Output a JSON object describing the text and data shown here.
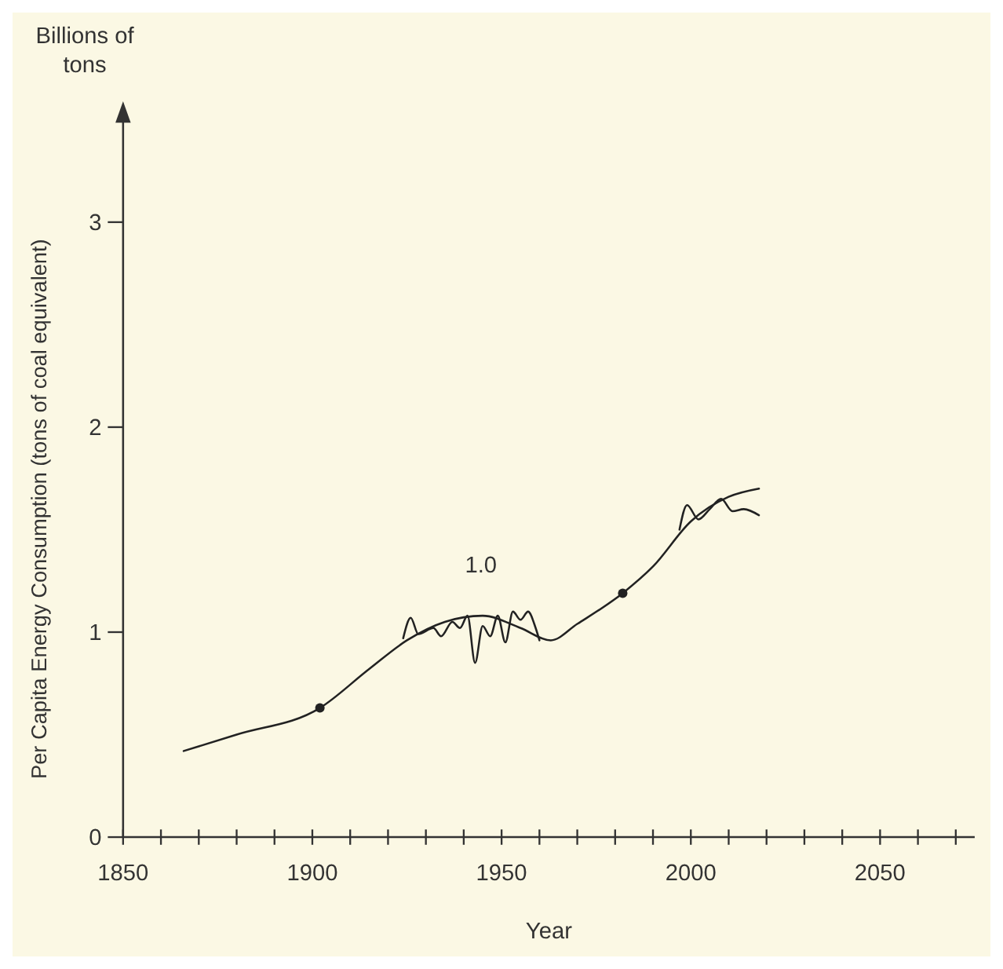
{
  "chart_data": {
    "type": "line",
    "xlabel": "Year",
    "ylabel": "Per Capita Energy Consumption (tons of coal equivalent)",
    "annotations": [
      "Billions of tons",
      "1.0"
    ],
    "xlim": [
      1850,
      2075
    ],
    "xticks": [
      1850,
      {
        "value": 1860,
        "label": null
      },
      {
        "value": 1870,
        "label": null
      },
      {
        "value": 1880,
        "label": null
      },
      {
        "value": 1890,
        "label": null
      },
      1900,
      {
        "value": 1910,
        "label": null
      },
      {
        "value": 1920,
        "label": null
      },
      {
        "value": 1930,
        "label": null
      },
      {
        "value": 1940,
        "label": null
      },
      1950,
      {
        "value": 1960,
        "label": null
      },
      {
        "value": 1970,
        "label": null
      },
      {
        "value": 1980,
        "label": null
      },
      {
        "value": 1990,
        "label": null
      },
      2000,
      {
        "value": 2010,
        "label": null
      },
      {
        "value": 2020,
        "label": null
      },
      {
        "value": 2030,
        "label": null
      },
      {
        "value": 2040,
        "label": null
      },
      2050,
      {
        "value": 2060,
        "label": null
      },
      {
        "value": 2070,
        "label": null
      }
    ],
    "ylim": [
      0,
      3.5
    ],
    "yticks": [
      0,
      1,
      2,
      3
    ],
    "grid": false,
    "line_style": "solid",
    "series": [
      {
        "color": "#222222",
        "x": [
          1866,
          1880,
          1902,
          1915,
          1925,
          1935,
          1945,
          1955,
          1963,
          1970,
          1982,
          1990,
          2000,
          2010,
          2018
        ],
        "values": [
          0.42,
          0.5,
          0.63,
          0.82,
          0.96,
          1.05,
          1.08,
          1.02,
          0.96,
          1.04,
          1.19,
          1.32,
          1.54,
          1.66,
          1.7
        ]
      },
      {
        "color": "#222222",
        "x": [
          1924,
          1926,
          1928,
          1932,
          1934,
          1937,
          1939,
          1941,
          1943,
          1945,
          1947,
          1949,
          1951,
          1953,
          1955,
          1957,
          1959,
          1960
        ],
        "values": [
          0.97,
          1.07,
          0.99,
          1.02,
          0.98,
          1.05,
          1.02,
          1.08,
          0.85,
          1.03,
          0.98,
          1.08,
          0.95,
          1.1,
          1.06,
          1.1,
          1.02,
          0.96
        ]
      },
      {
        "color": "#222222",
        "x": [
          1997,
          1999,
          2002,
          2005,
          2008,
          2011,
          2014,
          2018
        ],
        "values": [
          1.5,
          1.62,
          1.55,
          1.6,
          1.65,
          1.59,
          1.6,
          1.57
        ]
      },
      {
        "type": "scatter",
        "color": "#222222",
        "marker": "circle",
        "x": [
          1902,
          1982
        ],
        "values": [
          0.63,
          1.19
        ]
      }
    ]
  }
}
